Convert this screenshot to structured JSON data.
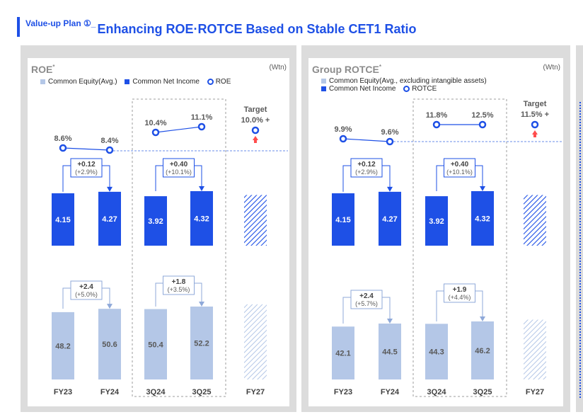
{
  "header": {
    "prefix": "Value-up Plan ①_",
    "title": "Enhancing ROE·ROTCE Based on Stable CET1 Ratio"
  },
  "colors": {
    "accent": "#1e50e6",
    "equity": "#b4c7e7",
    "panel": "#dcdcdc",
    "arrow_up": "#ff4d4d"
  },
  "chart_data": [
    {
      "type": "bar",
      "title": "ROE",
      "title_mark": "*",
      "unit": "(Wtn)",
      "legend": [
        "Common Equity(Avg.)",
        "Common Net Income",
        "ROE"
      ],
      "categories": [
        "FY23",
        "FY24",
        "3Q24",
        "3Q25",
        "FY27"
      ],
      "ratio": [
        "8.6%",
        "8.4%",
        "10.4%",
        "11.1%"
      ],
      "ratio_values": [
        8.6,
        8.4,
        10.4,
        11.1
      ],
      "target_label": "Target",
      "target_value": "10.0% +",
      "net_income": [
        4.15,
        4.27,
        3.92,
        4.32
      ],
      "net_income_labels": [
        "4.15",
        "4.27",
        "3.92",
        "4.32"
      ],
      "net_income_changes": [
        [
          "+0.12",
          "(+2.9%)"
        ],
        [
          "+0.40",
          "(+10.1%)"
        ]
      ],
      "equity": [
        48.2,
        50.6,
        50.4,
        52.2
      ],
      "equity_labels": [
        "48.2",
        "50.6",
        "50.4",
        "52.2"
      ],
      "equity_changes": [
        [
          "+2.4",
          "(+5.0%)"
        ],
        [
          "+1.8",
          "(+3.5%)"
        ]
      ],
      "hatched_fy27": true
    },
    {
      "type": "bar",
      "title": "Group ROTCE",
      "title_mark": "*",
      "unit": "(Wtn)",
      "legend": [
        "Common Equity(Avg., excluding intangible assets)",
        "Common Net Income",
        "ROTCE"
      ],
      "categories": [
        "FY23",
        "FY24",
        "3Q24",
        "3Q25",
        "FY27"
      ],
      "ratio": [
        "9.9%",
        "9.6%",
        "11.8%",
        "12.5%"
      ],
      "ratio_values": [
        9.9,
        9.6,
        11.8,
        12.5
      ],
      "target_label": "Target",
      "target_value": "11.5% +",
      "net_income": [
        4.15,
        4.27,
        3.92,
        4.32
      ],
      "net_income_labels": [
        "4.15",
        "4.27",
        "3.92",
        "4.32"
      ],
      "net_income_changes": [
        [
          "+0.12",
          "(+2.9%)"
        ],
        [
          "+0.40",
          "(+10.1%)"
        ]
      ],
      "equity": [
        42.1,
        44.5,
        44.3,
        46.2
      ],
      "equity_labels": [
        "42.1",
        "44.5",
        "44.3",
        "46.2"
      ],
      "equity_changes": [
        [
          "+2.4",
          "(+5.7%)"
        ],
        [
          "+1.9",
          "(+4.4%)"
        ]
      ],
      "hatched_fy27": true
    }
  ]
}
